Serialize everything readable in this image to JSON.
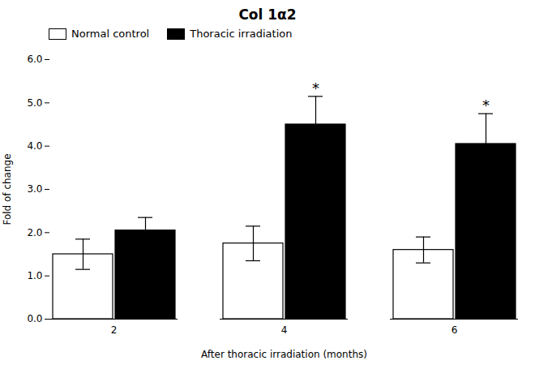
{
  "chart_data": {
    "type": "bar",
    "title": "Col 1α2",
    "xlabel": "After thoracic irradiation (months)",
    "ylabel": "Fold of change",
    "categories": [
      "2",
      "4",
      "6"
    ],
    "series": [
      {
        "name": "Normal control",
        "color": "#ffffff",
        "values": [
          1.5,
          1.75,
          1.6
        ],
        "errors": [
          0.35,
          0.4,
          0.3
        ]
      },
      {
        "name": "Thoracic irradiation",
        "color": "#000000",
        "values": [
          2.05,
          4.5,
          4.05
        ],
        "errors": [
          0.3,
          0.65,
          0.7
        ]
      }
    ],
    "annotations": [
      {
        "text": "*",
        "category": "4",
        "series": "Thoracic irradiation"
      },
      {
        "text": "*",
        "category": "6",
        "series": "Thoracic irradiation"
      }
    ],
    "ylim": [
      0,
      6
    ],
    "yticks": [
      0,
      1,
      2,
      3,
      4,
      5,
      6
    ],
    "grid": false,
    "legend": "upper left"
  }
}
